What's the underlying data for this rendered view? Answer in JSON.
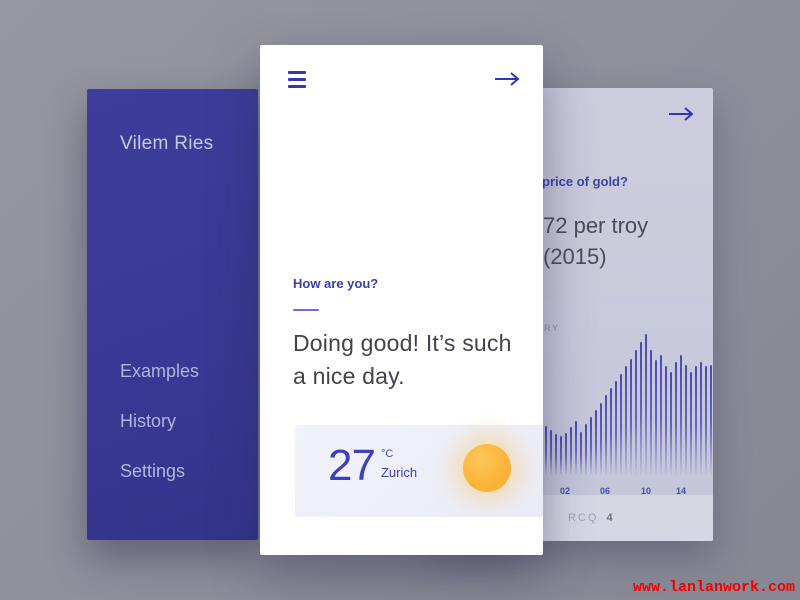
{
  "sidebar": {
    "title": "Vilem Ries",
    "items": [
      {
        "label": "Examples"
      },
      {
        "label": "History"
      },
      {
        "label": "Settings"
      }
    ]
  },
  "phone": {
    "question": "How are you?",
    "answer": "Doing good! It’s such a nice day.",
    "weather": {
      "temp": "27",
      "unit": "°C",
      "city": "Zurich"
    }
  },
  "gold_card": {
    "question_fragment": "price of gold?",
    "answer_line1": "72 per troy",
    "answer_line2": "(2015)",
    "chart_title_fragment": "RY",
    "footer_label": "RCQ",
    "footer_value": "4"
  },
  "chart_data": {
    "type": "bar",
    "title": "RY (partially hidden chart label)",
    "x_tick_labels": [
      "02",
      "06",
      "10",
      "14"
    ],
    "values": [
      34,
      31,
      28,
      27,
      29,
      33,
      37,
      30,
      35,
      40,
      45,
      50,
      55,
      60,
      65,
      70,
      75,
      80,
      86,
      92,
      97,
      86,
      79,
      83,
      75,
      71,
      78,
      83,
      76,
      71,
      75,
      78,
      75,
      76
    ],
    "ylim": [
      0,
      100
    ],
    "grid": false,
    "legend": false
  },
  "watermark": {
    "text": "www.lanlanwork.com"
  },
  "colors": {
    "sidebar_bg": "#3a3994",
    "accent_blue": "#3434b6",
    "card_bg": "#c8c9da",
    "sun_orange": "#fbb337",
    "watermark_red": "#f40000"
  }
}
